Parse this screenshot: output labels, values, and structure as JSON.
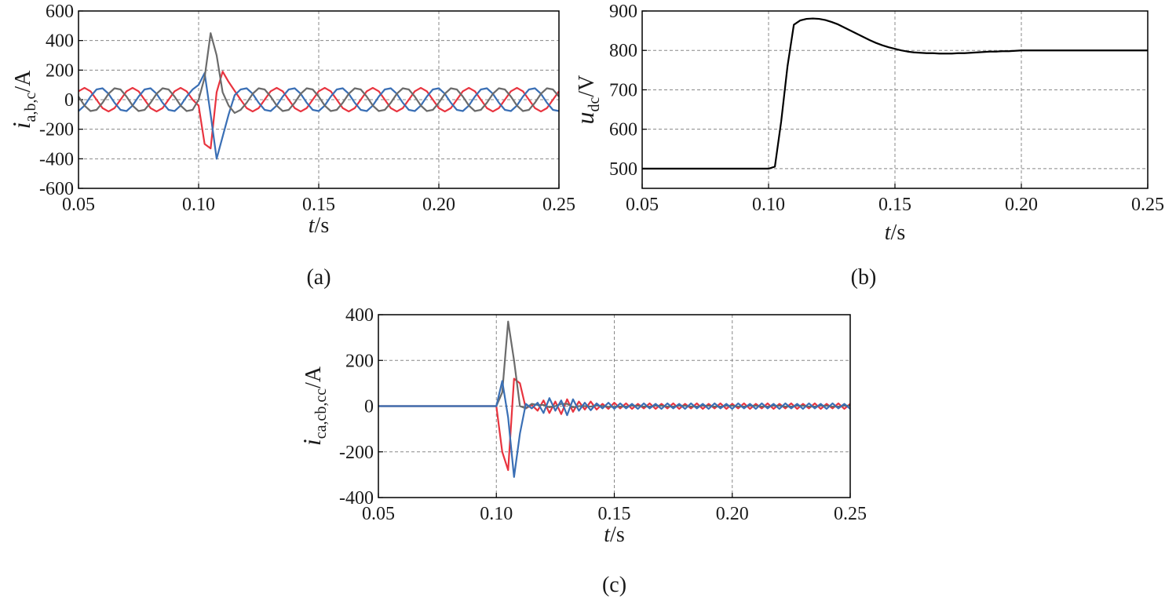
{
  "chart_data": [
    {
      "type": "line",
      "caption": "(a)",
      "xlabel": [
        "t",
        "/s"
      ],
      "ylabel": [
        "i",
        "a,b,c",
        "/A"
      ],
      "x": [
        0.05,
        0.0525,
        0.055,
        0.0575,
        0.06,
        0.0625,
        0.065,
        0.0675,
        0.07,
        0.0725,
        0.075,
        0.0775,
        0.08,
        0.0825,
        0.085,
        0.0875,
        0.09,
        0.0925,
        0.095,
        0.0975,
        0.1,
        0.1025,
        0.105,
        0.1075,
        0.11,
        0.1125,
        0.115,
        0.1175,
        0.12,
        0.1225,
        0.125,
        0.1275,
        0.13,
        0.1325,
        0.135,
        0.1375,
        0.14,
        0.1425,
        0.145,
        0.1475,
        0.15,
        0.1525,
        0.155,
        0.1575,
        0.16,
        0.1625,
        0.165,
        0.1675,
        0.17,
        0.1725,
        0.175,
        0.1775,
        0.18,
        0.1825,
        0.185,
        0.1875,
        0.19,
        0.1925,
        0.195,
        0.1975,
        0.2,
        0.2025,
        0.205,
        0.2075,
        0.21,
        0.2125,
        0.215,
        0.2175,
        0.22,
        0.2225,
        0.225,
        0.2275,
        0.23,
        0.2325,
        0.235,
        0.2375,
        0.24,
        0.2425,
        0.245,
        0.2475,
        0.25
      ],
      "xlim": [
        0.05,
        0.25
      ],
      "xticks": [
        0.05,
        {
          "value": 0.1,
          "label": "0.10"
        },
        0.15,
        {
          "value": 0.2,
          "label": "0.20"
        },
        0.25
      ],
      "ylim": [
        -600,
        600
      ],
      "yticks": [
        -600,
        -400,
        -200,
        0,
        200,
        400,
        600
      ],
      "grid": true,
      "series": [
        {
          "color": "#e8343f",
          "values": [
            57,
            80,
            57,
            0,
            -57,
            -80,
            -57,
            0,
            57,
            80,
            57,
            0,
            -57,
            -80,
            -57,
            0,
            57,
            80,
            57,
            0,
            -40,
            -300,
            -330,
            50,
            190,
            120,
            60,
            0,
            -57,
            -80,
            -57,
            0,
            57,
            80,
            57,
            0,
            -57,
            -80,
            -57,
            0,
            57,
            80,
            57,
            0,
            -57,
            -80,
            -57,
            0,
            57,
            80,
            57,
            0,
            -57,
            -80,
            -57,
            0,
            57,
            80,
            57,
            0,
            -57,
            -80,
            -57,
            0,
            57,
            80,
            57,
            0,
            -57,
            -80,
            -57,
            0,
            57,
            80,
            57,
            0,
            -57,
            -80,
            -57,
            0,
            57
          ]
        },
        {
          "color": "#3a6fb5",
          "values": [
            -77,
            -40,
            21,
            69,
            77,
            40,
            -21,
            -69,
            -77,
            -40,
            21,
            69,
            77,
            40,
            -21,
            -69,
            -77,
            -40,
            21,
            69,
            100,
            180,
            -100,
            -400,
            -250,
            -100,
            30,
            69,
            77,
            40,
            -21,
            -69,
            -77,
            -40,
            21,
            69,
            77,
            40,
            -21,
            -69,
            -77,
            -40,
            21,
            69,
            77,
            40,
            -21,
            -69,
            -77,
            -40,
            21,
            69,
            77,
            40,
            -21,
            -69,
            -77,
            -40,
            21,
            69,
            77,
            40,
            -21,
            -69,
            -77,
            -40,
            21,
            69,
            77,
            40,
            -21,
            -69,
            -77,
            -40,
            21,
            69,
            77,
            40,
            -21,
            -69,
            -77
          ]
        },
        {
          "color": "#6b6b6b",
          "values": [
            21,
            -40,
            -77,
            -69,
            -21,
            40,
            77,
            69,
            21,
            -40,
            -77,
            -69,
            -21,
            40,
            77,
            69,
            21,
            -40,
            -77,
            -69,
            0,
            150,
            450,
            300,
            50,
            -40,
            -90,
            -69,
            -21,
            40,
            77,
            69,
            21,
            -40,
            -77,
            -69,
            -21,
            40,
            77,
            69,
            21,
            -40,
            -77,
            -69,
            -21,
            40,
            77,
            69,
            21,
            -40,
            -77,
            -69,
            -21,
            40,
            77,
            69,
            21,
            -40,
            -77,
            -69,
            -21,
            40,
            77,
            69,
            21,
            -40,
            -77,
            -69,
            -21,
            40,
            77,
            69,
            21,
            -40,
            -77,
            -69,
            -21,
            40,
            77,
            69,
            21
          ]
        }
      ]
    },
    {
      "type": "line",
      "caption": "(b)",
      "xlabel": [
        "t",
        "/s"
      ],
      "ylabel": [
        "u",
        "dc",
        "/V"
      ],
      "x": [
        0.05,
        0.0525,
        0.055,
        0.0575,
        0.06,
        0.0625,
        0.065,
        0.0675,
        0.07,
        0.0725,
        0.075,
        0.0775,
        0.08,
        0.0825,
        0.085,
        0.0875,
        0.09,
        0.0925,
        0.095,
        0.0975,
        0.1,
        0.1025,
        0.105,
        0.1075,
        0.11,
        0.1125,
        0.115,
        0.1175,
        0.12,
        0.1225,
        0.125,
        0.1275,
        0.13,
        0.1325,
        0.135,
        0.1375,
        0.14,
        0.1425,
        0.145,
        0.1475,
        0.15,
        0.1525,
        0.155,
        0.1575,
        0.16,
        0.1625,
        0.165,
        0.1675,
        0.17,
        0.1725,
        0.175,
        0.1775,
        0.18,
        0.1825,
        0.185,
        0.1875,
        0.19,
        0.1925,
        0.195,
        0.1975,
        0.2,
        0.2025,
        0.205,
        0.2075,
        0.21,
        0.2125,
        0.215,
        0.2175,
        0.22,
        0.2225,
        0.225,
        0.2275,
        0.23,
        0.2325,
        0.235,
        0.2375,
        0.24,
        0.2425,
        0.245,
        0.2475,
        0.25
      ],
      "xlim": [
        0.05,
        0.25
      ],
      "xticks": [
        0.05,
        {
          "value": 0.1,
          "label": "0.10"
        },
        0.15,
        {
          "value": 0.2,
          "label": "0.20"
        },
        0.25
      ],
      "ylim": [
        450,
        900
      ],
      "yticks": [
        500,
        600,
        700,
        800,
        900
      ],
      "grid": true,
      "series": [
        {
          "color": "#000000",
          "values": [
            500,
            500,
            500,
            500,
            500,
            500,
            500,
            500,
            500,
            500,
            500,
            500,
            500,
            500,
            500,
            500,
            500,
            500,
            500,
            500,
            500,
            505,
            620,
            760,
            865,
            876,
            880,
            881,
            880,
            877,
            872,
            866,
            858,
            850,
            842,
            834,
            826,
            819,
            813,
            808,
            804,
            800,
            797,
            795,
            794,
            793,
            793,
            792,
            792,
            792,
            793,
            793,
            794,
            795,
            796,
            797,
            797,
            798,
            798,
            799,
            800,
            800,
            800,
            800,
            800,
            800,
            800,
            800,
            800,
            800,
            800,
            800,
            800,
            800,
            800,
            800,
            800,
            800,
            800,
            800,
            800
          ]
        }
      ]
    },
    {
      "type": "line",
      "caption": "(c)",
      "xlabel": [
        "t",
        "/s"
      ],
      "ylabel": [
        "i",
        "ca,cb,cc",
        "/A"
      ],
      "x": [
        0.05,
        0.0525,
        0.055,
        0.0575,
        0.06,
        0.0625,
        0.065,
        0.0675,
        0.07,
        0.0725,
        0.075,
        0.0775,
        0.08,
        0.0825,
        0.085,
        0.0875,
        0.09,
        0.0925,
        0.095,
        0.0975,
        0.1,
        0.1025,
        0.105,
        0.1075,
        0.11,
        0.1125,
        0.115,
        0.1175,
        0.12,
        0.1225,
        0.125,
        0.1275,
        0.13,
        0.1325,
        0.135,
        0.1375,
        0.14,
        0.1425,
        0.145,
        0.1475,
        0.15,
        0.1525,
        0.155,
        0.1575,
        0.16,
        0.1625,
        0.165,
        0.1675,
        0.17,
        0.1725,
        0.175,
        0.1775,
        0.18,
        0.1825,
        0.185,
        0.1875,
        0.19,
        0.1925,
        0.195,
        0.1975,
        0.2,
        0.2025,
        0.205,
        0.2075,
        0.21,
        0.2125,
        0.215,
        0.2175,
        0.22,
        0.2225,
        0.225,
        0.2275,
        0.23,
        0.2325,
        0.235,
        0.2375,
        0.24,
        0.2425,
        0.245,
        0.2475,
        0.25
      ],
      "xlim": [
        0.05,
        0.25
      ],
      "xticks": [
        0.05,
        {
          "value": 0.1,
          "label": "0.10"
        },
        0.15,
        {
          "value": 0.2,
          "label": "0.20"
        },
        0.25
      ],
      "ylim": [
        -400,
        400
      ],
      "yticks": [
        -400,
        -200,
        0,
        200,
        400
      ],
      "grid": true,
      "series": [
        {
          "color": "#e8343f",
          "values": [
            0,
            0,
            0,
            0,
            0,
            0,
            0,
            0,
            0,
            0,
            0,
            0,
            0,
            0,
            0,
            0,
            0,
            0,
            0,
            0,
            0,
            -200,
            -280,
            120,
            100,
            -10,
            5,
            -20,
            25,
            -30,
            20,
            -35,
            30,
            -25,
            20,
            -15,
            20,
            -15,
            10,
            -12,
            15,
            -10,
            12,
            -12,
            10,
            -10,
            12,
            -12,
            10,
            -10,
            12,
            -12,
            10,
            -10,
            12,
            -12,
            10,
            -10,
            12,
            -12,
            10,
            -10,
            12,
            -12,
            10,
            -10,
            12,
            -12,
            10,
            -10,
            12,
            -12,
            10,
            -10,
            12,
            -12,
            10,
            -10,
            12,
            -12,
            10
          ]
        },
        {
          "color": "#6b6b6b",
          "values": [
            0,
            0,
            0,
            0,
            0,
            0,
            0,
            0,
            0,
            0,
            0,
            0,
            0,
            0,
            0,
            0,
            0,
            0,
            0,
            0,
            0,
            60,
            370,
            200,
            0,
            -10,
            10,
            5,
            5,
            -5,
            0,
            10,
            10,
            -5,
            0,
            0,
            -2,
            3,
            0,
            -3,
            -3,
            -2,
            -2,
            2,
            2,
            -2,
            -2,
            2,
            2,
            -2,
            -2,
            2,
            2,
            -2,
            -2,
            2,
            2,
            -2,
            -2,
            2,
            2,
            -2,
            -2,
            2,
            2,
            -2,
            -2,
            2,
            2,
            -2,
            -2,
            2,
            2,
            -2,
            -2,
            2,
            2,
            -2,
            -2,
            2,
            2
          ]
        },
        {
          "color": "#3a6fb5",
          "values": [
            0,
            0,
            0,
            0,
            0,
            0,
            0,
            0,
            0,
            0,
            0,
            0,
            0,
            0,
            0,
            0,
            0,
            0,
            0,
            0,
            0,
            110,
            -50,
            -310,
            -120,
            10,
            -10,
            15,
            -30,
            35,
            -20,
            25,
            -40,
            30,
            -20,
            15,
            -18,
            12,
            -10,
            15,
            -12,
            12,
            -10,
            10,
            -12,
            12,
            -10,
            10,
            -12,
            12,
            -10,
            10,
            -12,
            12,
            -10,
            10,
            -12,
            12,
            -10,
            10,
            -12,
            12,
            -10,
            10,
            -12,
            12,
            -10,
            10,
            -12,
            12,
            -10,
            10,
            -12,
            12,
            -10,
            10,
            -12,
            12,
            -10,
            10,
            -12
          ]
        }
      ]
    }
  ]
}
